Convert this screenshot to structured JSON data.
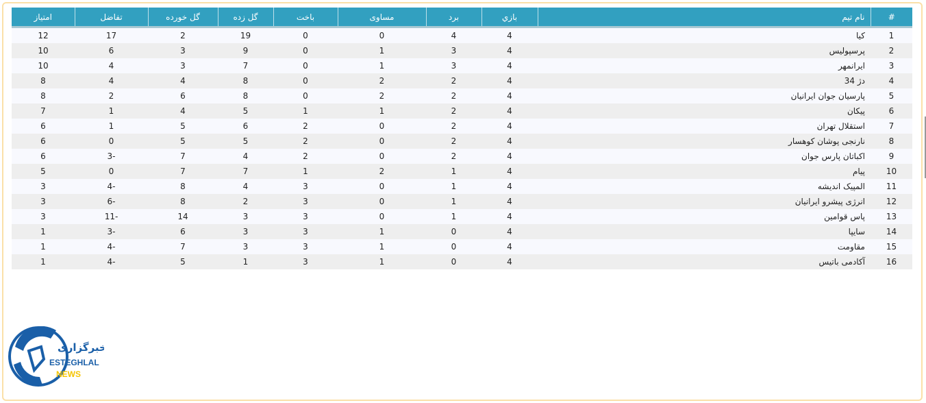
{
  "table": {
    "headers": [
      "#",
      "نام تیم",
      "بازي",
      "برد",
      "مساوی",
      "باخت",
      "گل زده",
      "گل خورده",
      "تفاضل",
      "امتیاز"
    ],
    "rows": [
      {
        "rank": "1",
        "team": "کیا",
        "played": "4",
        "won": "4",
        "drawn": "0",
        "lost": "0",
        "gf": "19",
        "ga": "2",
        "gd": "17",
        "pts": "12"
      },
      {
        "rank": "2",
        "team": "پرسپولیس",
        "played": "4",
        "won": "3",
        "drawn": "1",
        "lost": "0",
        "gf": "9",
        "ga": "3",
        "gd": "6",
        "pts": "10"
      },
      {
        "rank": "3",
        "team": "ایرانمهر",
        "played": "4",
        "won": "3",
        "drawn": "1",
        "lost": "0",
        "gf": "7",
        "ga": "3",
        "gd": "4",
        "pts": "10"
      },
      {
        "rank": "4",
        "team": "دژ 34",
        "played": "4",
        "won": "2",
        "drawn": "2",
        "lost": "0",
        "gf": "8",
        "ga": "4",
        "gd": "4",
        "pts": "8"
      },
      {
        "rank": "5",
        "team": "پارسیان جوان ایرانیان",
        "played": "4",
        "won": "2",
        "drawn": "2",
        "lost": "0",
        "gf": "8",
        "ga": "6",
        "gd": "2",
        "pts": "8"
      },
      {
        "rank": "6",
        "team": "پیکان",
        "played": "4",
        "won": "2",
        "drawn": "1",
        "lost": "1",
        "gf": "5",
        "ga": "4",
        "gd": "1",
        "pts": "7"
      },
      {
        "rank": "7",
        "team": "استقلال تهران",
        "played": "4",
        "won": "2",
        "drawn": "0",
        "lost": "2",
        "gf": "6",
        "ga": "5",
        "gd": "1",
        "pts": "6"
      },
      {
        "rank": "8",
        "team": "نارنجی پوشان کوهسار",
        "played": "4",
        "won": "2",
        "drawn": "0",
        "lost": "2",
        "gf": "5",
        "ga": "5",
        "gd": "0",
        "pts": "6"
      },
      {
        "rank": "9",
        "team": "اکباتان پارس جوان",
        "played": "4",
        "won": "2",
        "drawn": "0",
        "lost": "2",
        "gf": "4",
        "ga": "7",
        "gd": "3-",
        "pts": "6"
      },
      {
        "rank": "10",
        "team": "پیام",
        "played": "4",
        "won": "1",
        "drawn": "2",
        "lost": "1",
        "gf": "7",
        "ga": "7",
        "gd": "0",
        "pts": "5"
      },
      {
        "rank": "11",
        "team": "المپیک اندیشه",
        "played": "4",
        "won": "1",
        "drawn": "0",
        "lost": "3",
        "gf": "4",
        "ga": "8",
        "gd": "4-",
        "pts": "3"
      },
      {
        "rank": "12",
        "team": "انرژی پیشرو ایرانیان",
        "played": "4",
        "won": "1",
        "drawn": "0",
        "lost": "3",
        "gf": "2",
        "ga": "8",
        "gd": "6-",
        "pts": "3"
      },
      {
        "rank": "13",
        "team": "پاس قوامین",
        "played": "4",
        "won": "1",
        "drawn": "0",
        "lost": "3",
        "gf": "3",
        "ga": "14",
        "gd": "11-",
        "pts": "3"
      },
      {
        "rank": "14",
        "team": "سایپا",
        "played": "4",
        "won": "0",
        "drawn": "1",
        "lost": "3",
        "gf": "3",
        "ga": "6",
        "gd": "3-",
        "pts": "1"
      },
      {
        "rank": "15",
        "team": "مقاومت",
        "played": "4",
        "won": "0",
        "drawn": "1",
        "lost": "3",
        "gf": "3",
        "ga": "7",
        "gd": "4-",
        "pts": "1"
      },
      {
        "rank": "16",
        "team": "آکادمی باتیس",
        "played": "4",
        "won": "0",
        "drawn": "1",
        "lost": "3",
        "gf": "1",
        "ga": "5",
        "gd": "4-",
        "pts": "1"
      }
    ]
  },
  "logo": {
    "text_fa": "خبرگزاری",
    "line1": "ESTEGHLAL",
    "line2": "NEWS"
  },
  "colors": {
    "header": "#32a0c0",
    "frame": "#fbe0a8",
    "logo_blue": "#1a5fa8",
    "logo_yellow": "#f5c400"
  }
}
